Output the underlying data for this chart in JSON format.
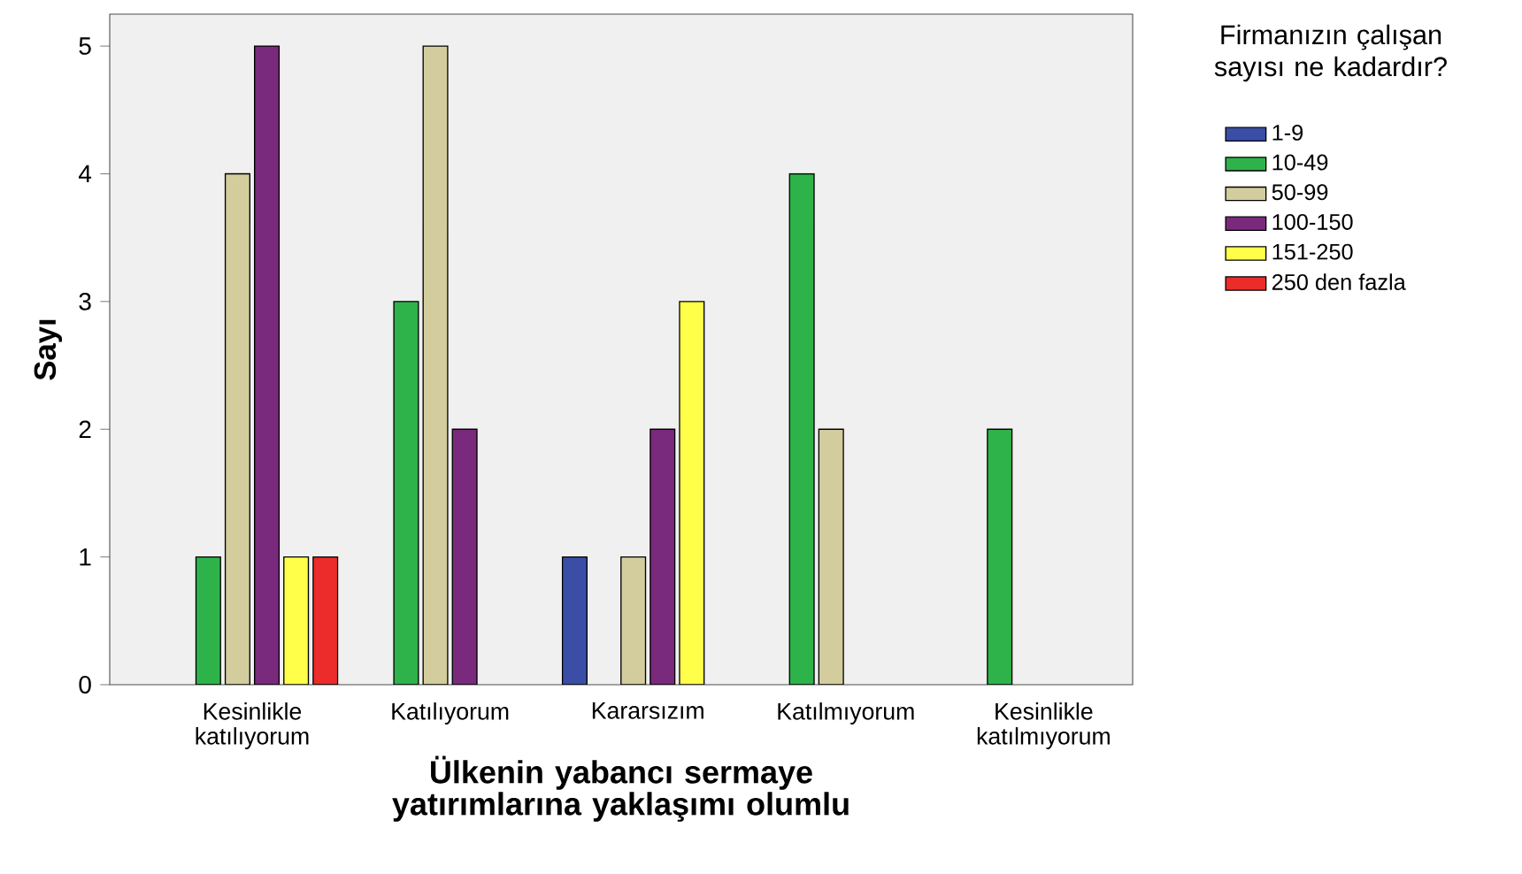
{
  "chart_data": {
    "type": "bar",
    "xlabel": "Ülkenin yabancı sermaye yatırımlarına yaklaşımı olumlu",
    "ylabel": "Sayı",
    "legend_title": "Firmanızın çalışan sayısı ne kadardır?",
    "categories": [
      "Kesinlikle katılıyorum",
      "Katılıyorum",
      "Kararsızım",
      "Katılmıyorum",
      "Kesinlikle katılmıyorum"
    ],
    "series": [
      {
        "name": "1-9",
        "color": "#3a4ea6",
        "values": [
          null,
          null,
          1,
          null,
          null
        ]
      },
      {
        "name": "10-49",
        "color": "#2eb34a",
        "values": [
          1,
          3,
          null,
          4,
          2
        ]
      },
      {
        "name": "50-99",
        "color": "#d3cd9e",
        "values": [
          4,
          5,
          1,
          2,
          null
        ]
      },
      {
        "name": "100-150",
        "color": "#7a2a7c",
        "values": [
          5,
          2,
          2,
          null,
          null
        ]
      },
      {
        "name": "151-250",
        "color": "#ffff4a",
        "values": [
          1,
          null,
          3,
          null,
          null
        ]
      },
      {
        "name": "250 den fazla",
        "color": "#ec2b2b",
        "values": [
          1,
          null,
          null,
          null,
          null
        ]
      }
    ],
    "ylim": [
      0,
      5.25
    ],
    "yticks": [
      0,
      1,
      2,
      3,
      4,
      5
    ],
    "grid": false,
    "legend": "right"
  }
}
